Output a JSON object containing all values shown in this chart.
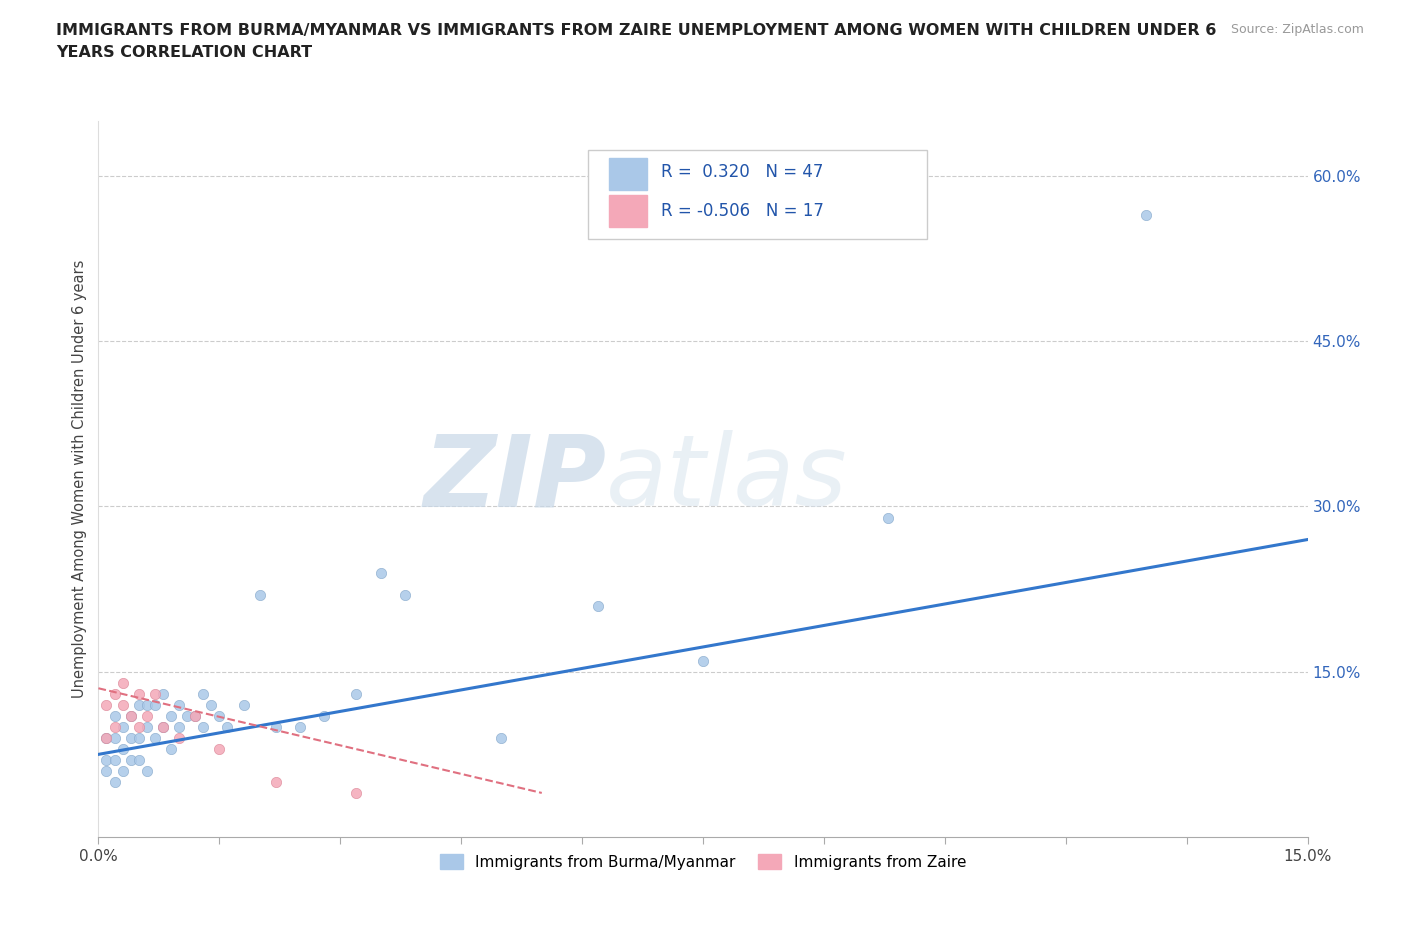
{
  "title_line1": "IMMIGRANTS FROM BURMA/MYANMAR VS IMMIGRANTS FROM ZAIRE UNEMPLOYMENT AMONG WOMEN WITH CHILDREN UNDER 6",
  "title_line2": "YEARS CORRELATION CHART",
  "source": "Source: ZipAtlas.com",
  "ylabel": "Unemployment Among Women with Children Under 6 years",
  "xlim": [
    0.0,
    0.15
  ],
  "ylim": [
    0.0,
    0.65
  ],
  "xticks": [
    0.0,
    0.015,
    0.03,
    0.045,
    0.06,
    0.075,
    0.09,
    0.105,
    0.12,
    0.135,
    0.15
  ],
  "xticklabels": [
    "0.0%",
    "",
    "",
    "",
    "",
    "",
    "",
    "",
    "",
    "",
    "15.0%"
  ],
  "ytick_positions": [
    0.0,
    0.15,
    0.3,
    0.45,
    0.6
  ],
  "ytick_labels": [
    "",
    "15.0%",
    "30.0%",
    "45.0%",
    "60.0%"
  ],
  "burma_R": 0.32,
  "burma_N": 47,
  "zaire_R": -0.506,
  "zaire_N": 17,
  "burma_color": "#aac8e8",
  "zaire_color": "#f4a8b8",
  "burma_line_color": "#3377cc",
  "zaire_line_color": "#e07080",
  "watermark_zip": "ZIP",
  "watermark_atlas": "atlas",
  "background_color": "#ffffff",
  "burma_x": [
    0.001,
    0.001,
    0.001,
    0.002,
    0.002,
    0.002,
    0.002,
    0.003,
    0.003,
    0.003,
    0.004,
    0.004,
    0.004,
    0.005,
    0.005,
    0.005,
    0.006,
    0.006,
    0.006,
    0.007,
    0.007,
    0.008,
    0.008,
    0.009,
    0.009,
    0.01,
    0.01,
    0.011,
    0.012,
    0.013,
    0.013,
    0.014,
    0.015,
    0.016,
    0.018,
    0.02,
    0.022,
    0.025,
    0.028,
    0.032,
    0.035,
    0.038,
    0.05,
    0.062,
    0.075,
    0.098,
    0.13
  ],
  "burma_y": [
    0.06,
    0.07,
    0.09,
    0.05,
    0.07,
    0.09,
    0.11,
    0.06,
    0.08,
    0.1,
    0.07,
    0.09,
    0.11,
    0.07,
    0.09,
    0.12,
    0.06,
    0.1,
    0.12,
    0.09,
    0.12,
    0.1,
    0.13,
    0.08,
    0.11,
    0.1,
    0.12,
    0.11,
    0.11,
    0.1,
    0.13,
    0.12,
    0.11,
    0.1,
    0.12,
    0.22,
    0.1,
    0.1,
    0.11,
    0.13,
    0.24,
    0.22,
    0.09,
    0.21,
    0.16,
    0.29,
    0.565
  ],
  "zaire_x": [
    0.001,
    0.001,
    0.002,
    0.002,
    0.003,
    0.003,
    0.004,
    0.005,
    0.005,
    0.006,
    0.007,
    0.008,
    0.01,
    0.012,
    0.015,
    0.022,
    0.032
  ],
  "zaire_y": [
    0.09,
    0.12,
    0.1,
    0.13,
    0.12,
    0.14,
    0.11,
    0.1,
    0.13,
    0.11,
    0.13,
    0.1,
    0.09,
    0.11,
    0.08,
    0.05,
    0.04
  ],
  "burma_trend_x": [
    0.0,
    0.15
  ],
  "burma_trend_y": [
    0.075,
    0.27
  ],
  "zaire_trend_x": [
    0.0,
    0.055
  ],
  "zaire_trend_y": [
    0.135,
    0.04
  ]
}
